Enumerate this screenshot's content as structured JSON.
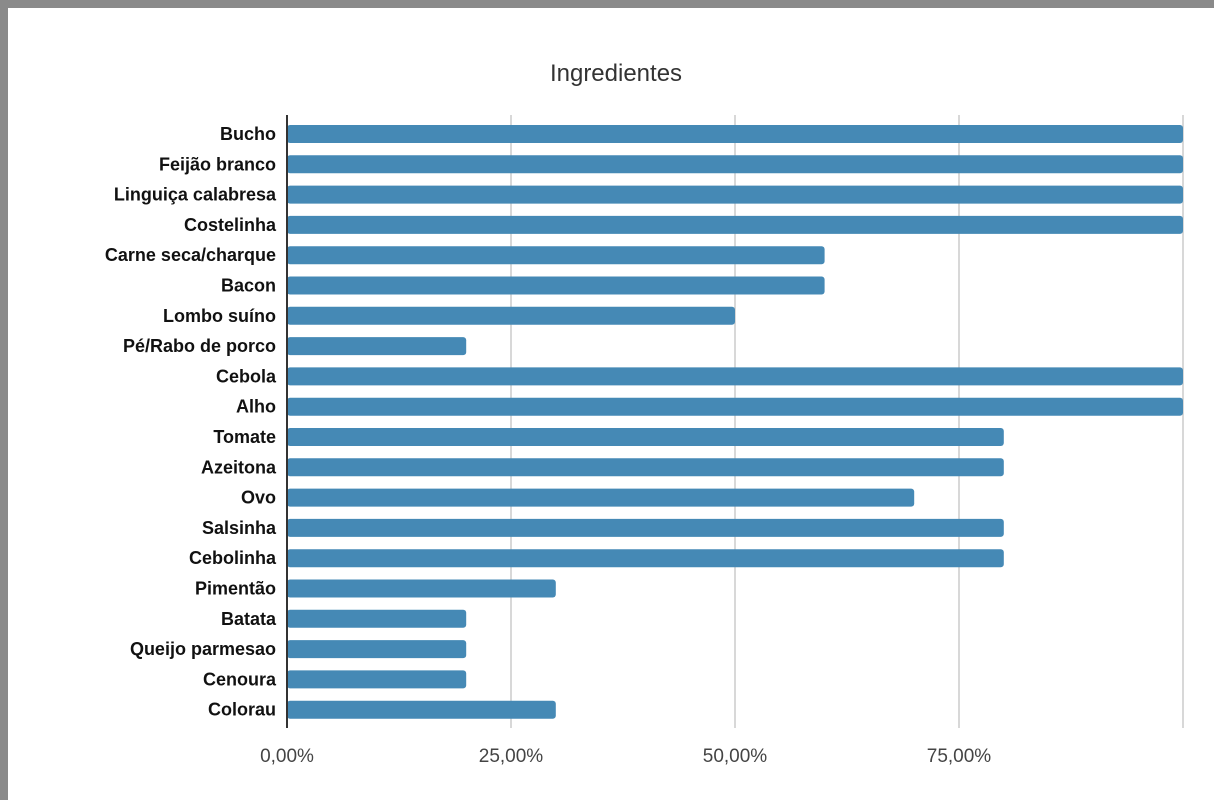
{
  "chart_data": {
    "type": "bar",
    "orientation": "horizontal",
    "title": "Ingredientes",
    "categories": [
      "Bucho",
      "Feijão branco",
      "Linguiça calabresa",
      "Costelinha",
      "Carne seca/charque",
      "Bacon",
      "Lombo suíno",
      "Pé/Rabo de porco",
      "Cebola",
      "Alho",
      "Tomate",
      "Azeitona",
      "Ovo",
      "Salsinha",
      "Cebolinha",
      "Pimentão",
      "Batata",
      "Queijo parmesao",
      "Cenoura",
      "Colorau"
    ],
    "values": [
      100,
      100,
      100,
      100,
      60,
      60,
      50,
      20,
      100,
      100,
      80,
      80,
      70,
      80,
      80,
      30,
      20,
      20,
      20,
      30
    ],
    "value_unit": "percent",
    "xlim": [
      0,
      100
    ],
    "x_ticks": [
      0,
      25,
      50,
      75,
      100
    ],
    "x_tick_labels": [
      "0,00%",
      "25,00%",
      "50,00%",
      "75,00%",
      ""
    ],
    "xlabel": "",
    "ylabel": "",
    "grid": "vertical",
    "bar_color": "#4589b5",
    "gridline_color": "#cccccc",
    "axis_color": "#333333"
  }
}
